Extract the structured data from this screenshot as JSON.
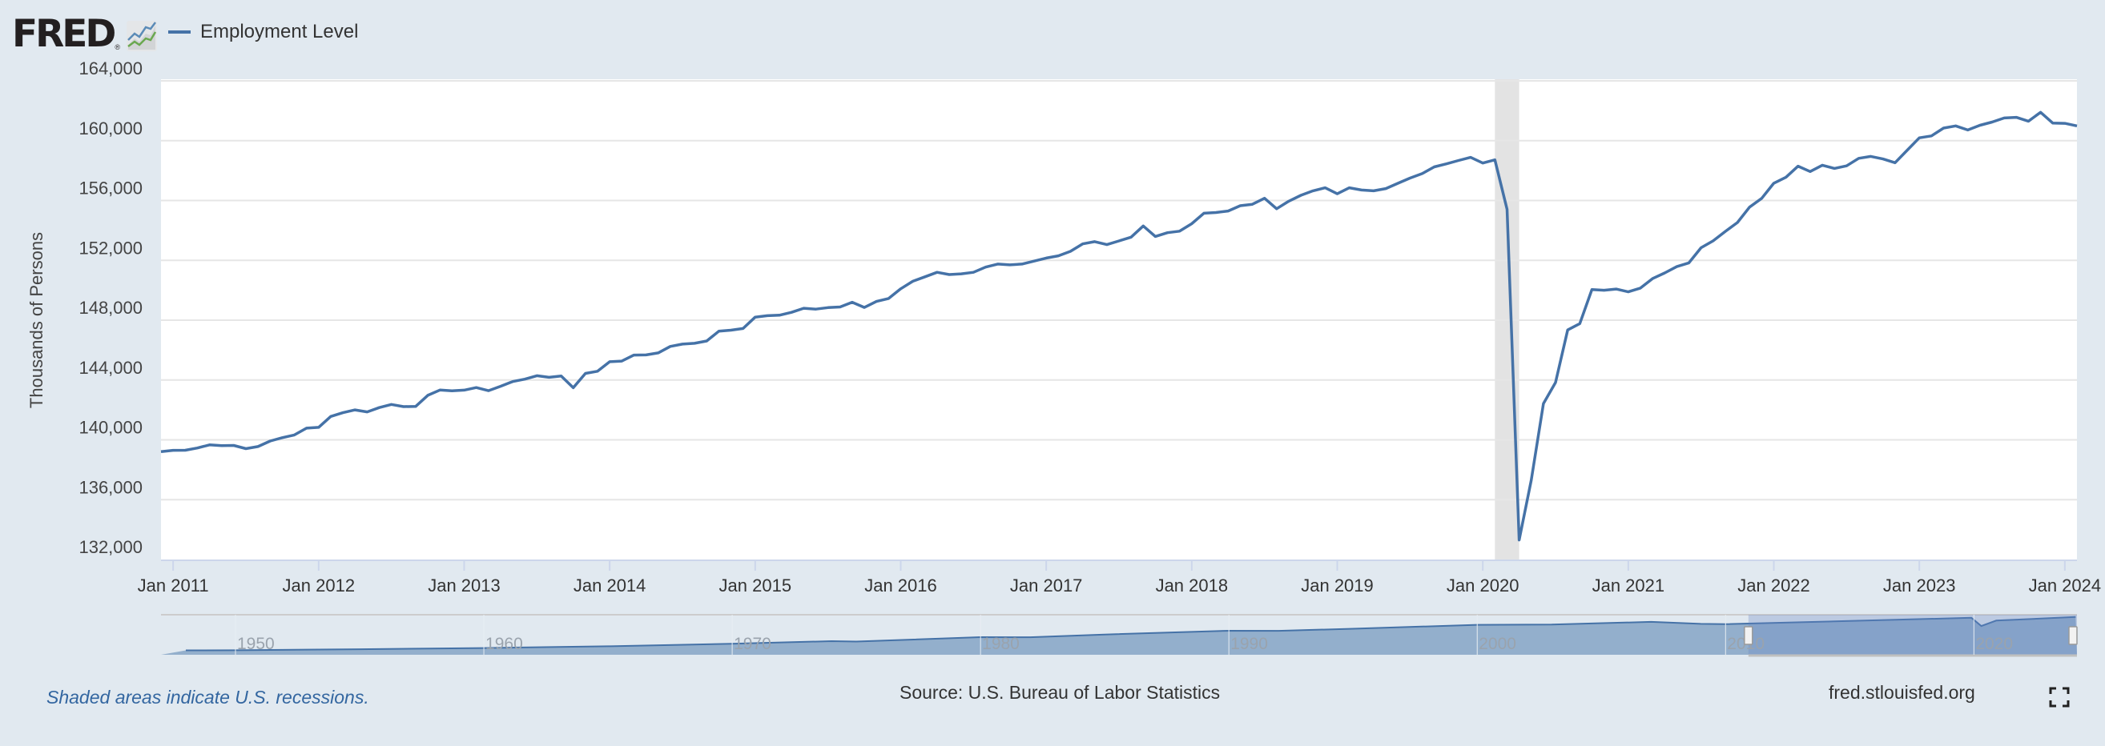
{
  "logo": {
    "text": "FRED",
    "reg": "®",
    "icon": "fred-chart-icon"
  },
  "legend": {
    "series_label": "Employment Level",
    "color": "#4572a7"
  },
  "footer": {
    "recession_note": "Shaded areas indicate U.S. recessions.",
    "source": "Source: U.S. Bureau of Labor Statistics",
    "site": "fred.stlouisfed.org",
    "fullscreen_icon": "fullscreen-icon"
  },
  "chart_data": {
    "type": "line",
    "title": "",
    "series": [
      {
        "name": "Employment Level",
        "color": "#4572a7"
      }
    ],
    "xlabel": "",
    "ylabel": "Thousands of Persons",
    "x_start": "2010-12",
    "x_end": "2024-02",
    "frequency": "monthly",
    "ylim": [
      132000,
      164000
    ],
    "yticks": [
      132000,
      136000,
      140000,
      144000,
      148000,
      152000,
      156000,
      160000,
      164000
    ],
    "ytick_labels": [
      "132,000",
      "136,000",
      "140,000",
      "144,000",
      "148,000",
      "152,000",
      "156,000",
      "160,000",
      "164,000"
    ],
    "xtick_labels": [
      "Jan 2011",
      "Jan 2012",
      "Jan 2013",
      "Jan 2014",
      "Jan 2015",
      "Jan 2016",
      "Jan 2017",
      "Jan 2018",
      "Jan 2019",
      "Jan 2020",
      "Jan 2021",
      "Jan 2022",
      "Jan 2023",
      "Jan 2024"
    ],
    "grid": true,
    "recessions": [
      {
        "start": "2020-02",
        "end": "2020-04",
        "color": "#e3e3e3"
      }
    ],
    "values": [
      139206,
      139301,
      139302,
      139456,
      139661,
      139607,
      139626,
      139413,
      139553,
      139921,
      140145,
      140326,
      140780,
      140835,
      141560,
      141815,
      141999,
      141865,
      142156,
      142364,
      142220,
      142230,
      142974,
      143328,
      143277,
      143322,
      143492,
      143286,
      143579,
      143898,
      144058,
      144285,
      144179,
      144270,
      143485,
      144443,
      144586,
      145224,
      145266,
      145668,
      145677,
      145814,
      146247,
      146401,
      146451,
      146607,
      147260,
      147331,
      147442,
      148201,
      148297,
      148331,
      148523,
      148795,
      148739,
      148840,
      148882,
      149200,
      148850,
      149250,
      149450,
      150100,
      150600,
      150900,
      151200,
      151050,
      151100,
      151200,
      151550,
      151750,
      151700,
      151750,
      151950,
      152150,
      152300,
      152600,
      153100,
      153250,
      153050,
      153300,
      153550,
      154300,
      153600,
      153850,
      153950,
      154450,
      155150,
      155200,
      155300,
      155650,
      155750,
      156150,
      155450,
      155950,
      156350,
      156650,
      156850,
      156450,
      156850,
      156700,
      156650,
      156800,
      157150,
      157500,
      157800,
      158250,
      158450,
      158674,
      158884,
      158505,
      158716,
      155411,
      133305,
      137305,
      142421,
      143832,
      147347,
      147768,
      150042,
      150000,
      150084,
      149895,
      150147,
      150779,
      151158,
      151579,
      151832,
      152842,
      153305,
      153937,
      154526,
      155558,
      156147,
      157158,
      157558,
      158295,
      157937,
      158358,
      158147,
      158316,
      158821,
      158947,
      158779,
      158526,
      159368,
      160189,
      160316,
      160842,
      160989,
      160716,
      161032,
      161242,
      161516,
      161558,
      161305,
      161895,
      161179,
      161158,
      160989
    ],
    "navigator": {
      "range": [
        1947.0,
        2024.15
      ],
      "selected": [
        2010.92,
        2024.15
      ],
      "labels": [
        "1950",
        "1960",
        "1970",
        "1980",
        "1990",
        "2000",
        "2010",
        "2020"
      ],
      "years": [
        1948,
        1950,
        1955,
        1960,
        1965,
        1970,
        1974,
        1975,
        1980,
        1982,
        1985,
        1990,
        1992,
        1995,
        2000,
        2003,
        2007,
        2009,
        2010,
        2015,
        2019.9,
        2020.3,
        2020.9,
        2024.1
      ],
      "values": [
        58600,
        58900,
        62200,
        65800,
        71100,
        78700,
        86800,
        85800,
        99300,
        99000,
        107200,
        118800,
        118500,
        124900,
        136900,
        137700,
        146000,
        140000,
        139000,
        148800,
        158700,
        133300,
        150000,
        161000
      ]
    }
  }
}
